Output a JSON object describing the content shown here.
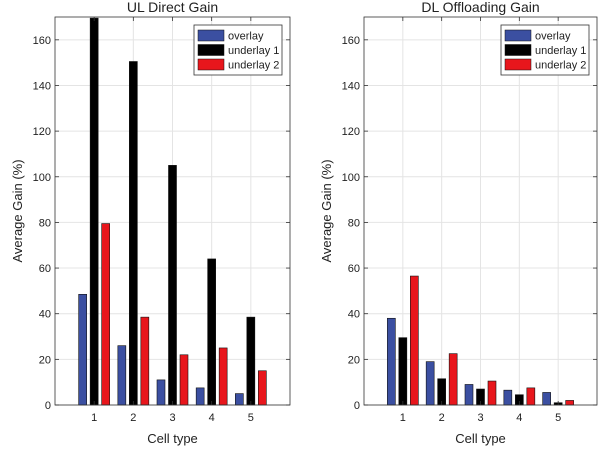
{
  "chart_data": [
    {
      "type": "bar",
      "title": "UL Direct Gain",
      "xlabel": "Cell type",
      "ylabel": "Average Gain (%)",
      "categories": [
        "1",
        "2",
        "3",
        "4",
        "5"
      ],
      "ylim": [
        0,
        170
      ],
      "yticks": [
        0,
        20,
        40,
        60,
        80,
        100,
        120,
        140,
        160
      ],
      "grid": true,
      "legend_position": "top-right",
      "series": [
        {
          "name": "overlay",
          "color": "#3b4fa1",
          "values": [
            48.5,
            26,
            11,
            7.5,
            5
          ]
        },
        {
          "name": "underlay 1",
          "color": "#000000",
          "values": [
            169.5,
            150.5,
            105,
            64,
            38.5
          ]
        },
        {
          "name": "underlay 2",
          "color": "#e8161c",
          "values": [
            79.5,
            38.5,
            22,
            25,
            15
          ]
        }
      ]
    },
    {
      "type": "bar",
      "title": "DL Offloading Gain",
      "xlabel": "Cell type",
      "ylabel": "Average Gain (%)",
      "categories": [
        "1",
        "2",
        "3",
        "4",
        "5"
      ],
      "ylim": [
        0,
        170
      ],
      "yticks": [
        0,
        20,
        40,
        60,
        80,
        100,
        120,
        140,
        160
      ],
      "grid": true,
      "legend_position": "top-right",
      "series": [
        {
          "name": "overlay",
          "color": "#3b4fa1",
          "values": [
            38,
            19,
            9,
            6.5,
            5.5
          ]
        },
        {
          "name": "underlay 1",
          "color": "#000000",
          "values": [
            29.5,
            11.5,
            7,
            4.5,
            1
          ]
        },
        {
          "name": "underlay 2",
          "color": "#e8161c",
          "values": [
            56.5,
            22.5,
            10.5,
            7.5,
            2
          ]
        }
      ]
    }
  ]
}
